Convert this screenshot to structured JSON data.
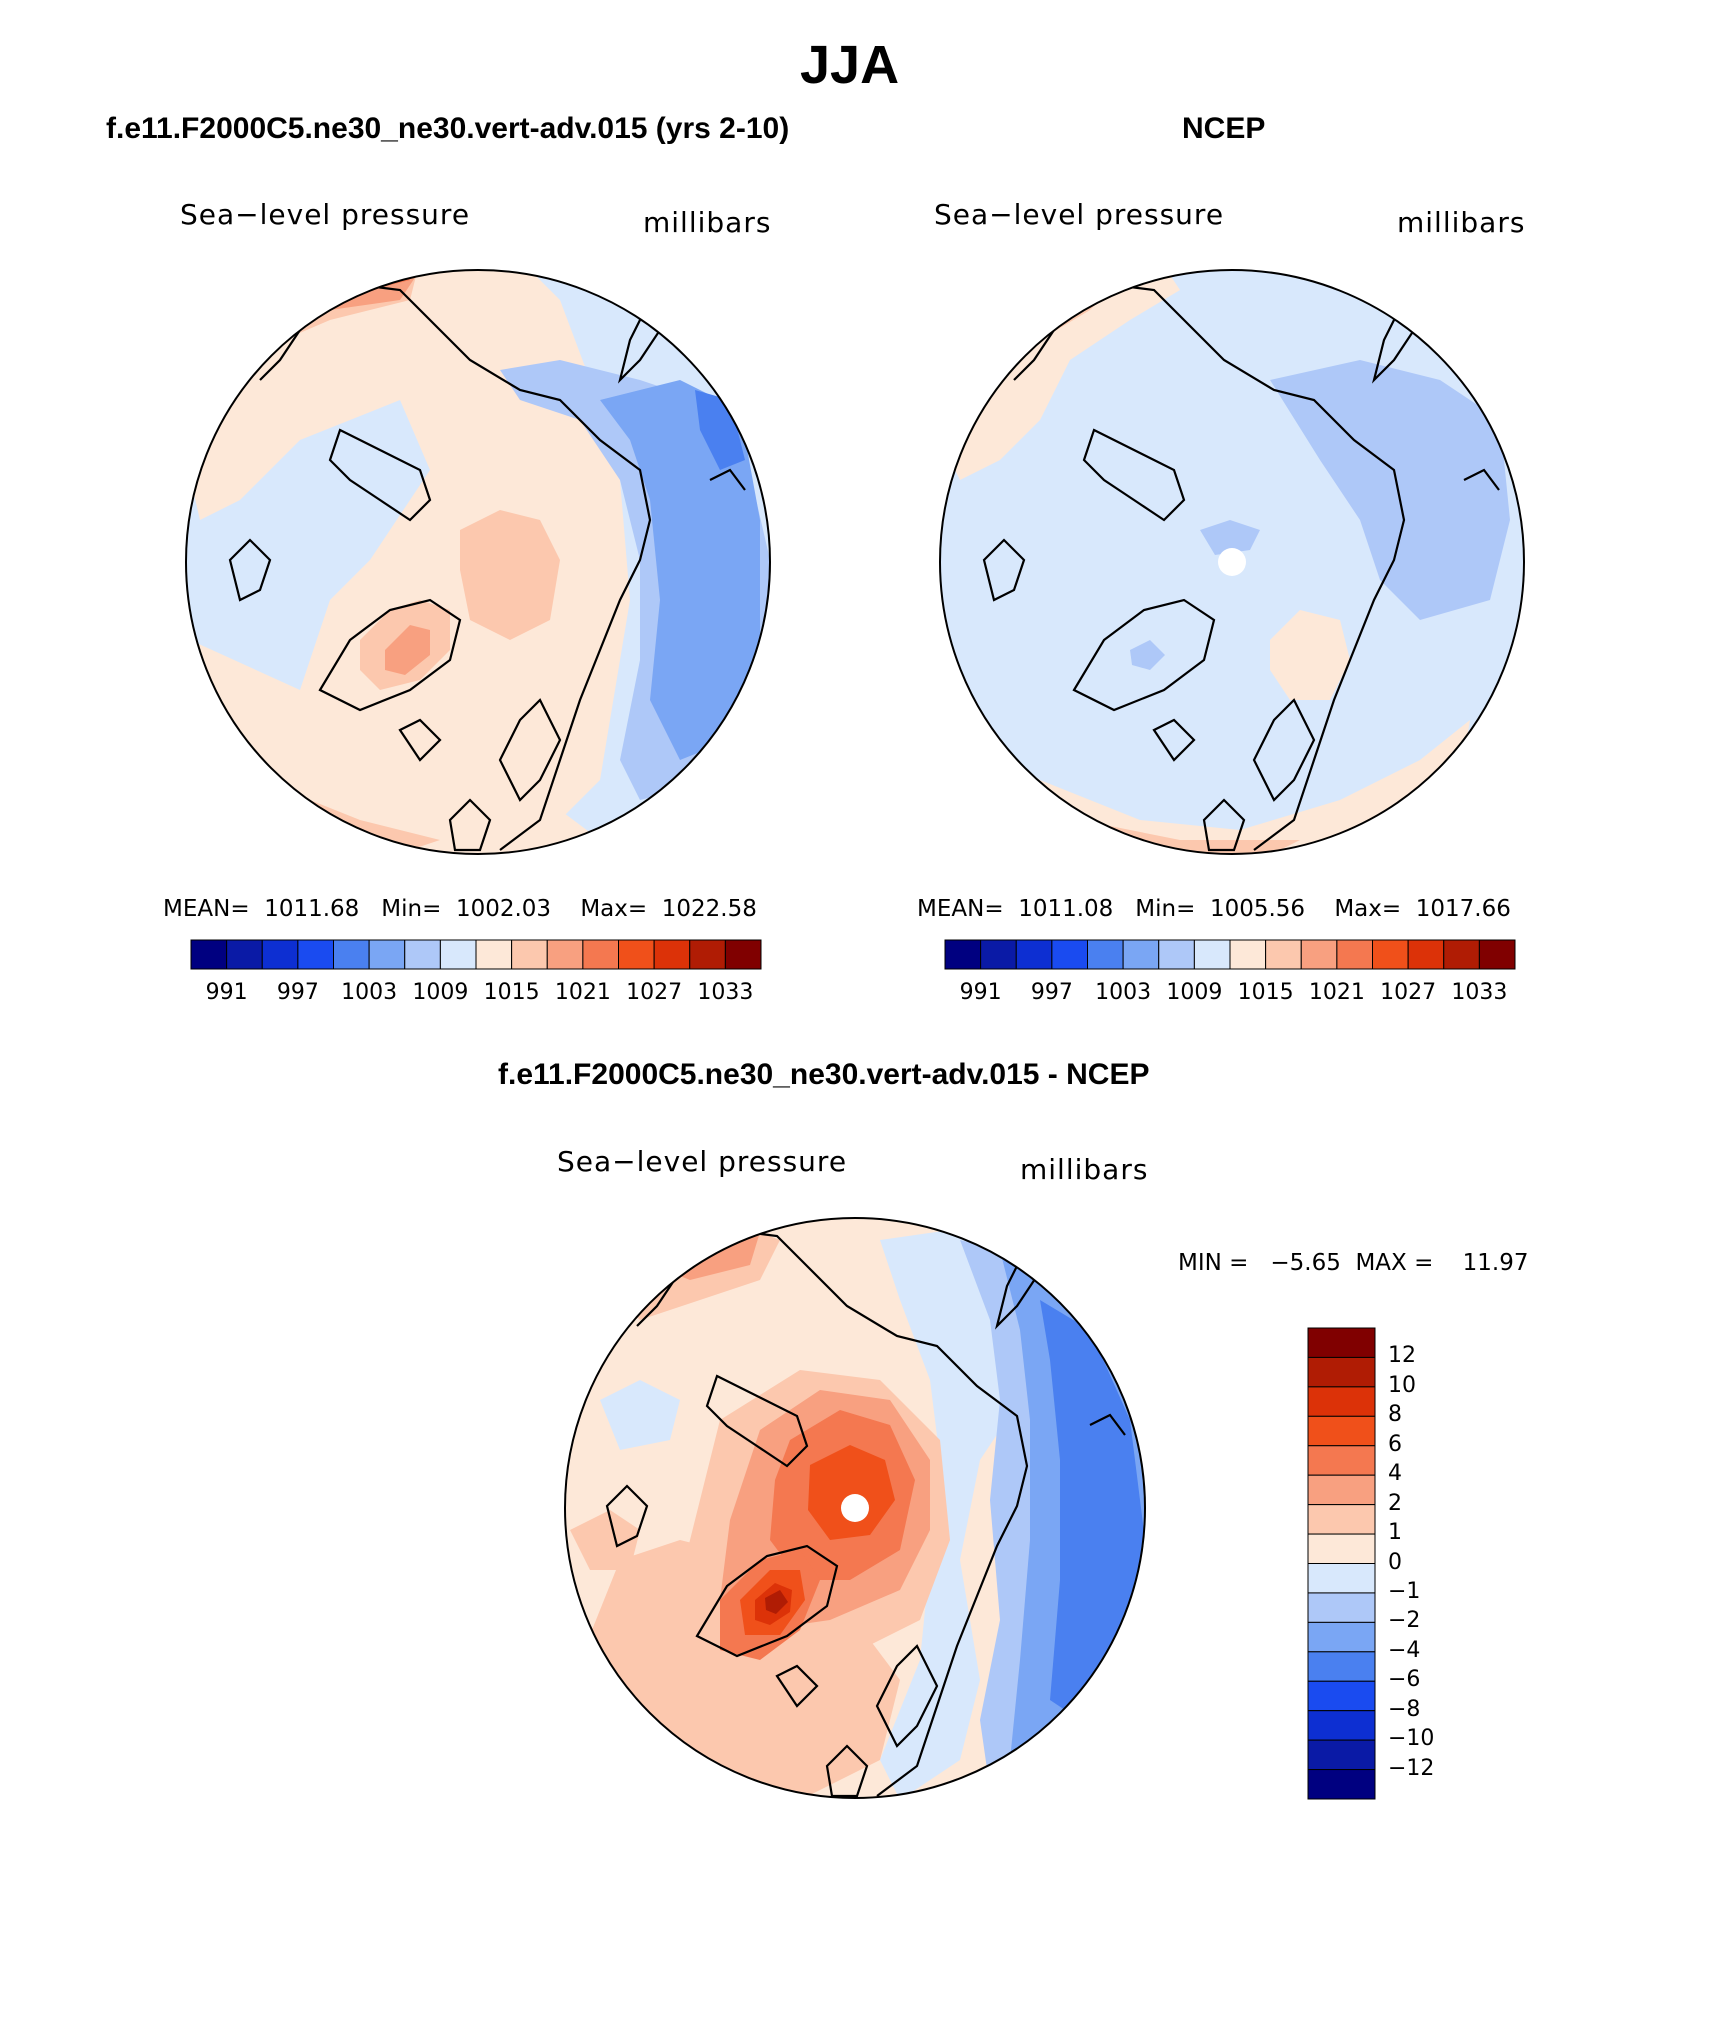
{
  "figure": {
    "title": "JJA"
  },
  "colors": {
    "hbar": [
      "#000080",
      "#0a1aa6",
      "#0d2fd2",
      "#1a4bf0",
      "#4a80f0",
      "#7aa6f4",
      "#aec8f8",
      "#d8e8fc",
      "#fde8d8",
      "#fcc8ae",
      "#f8a080",
      "#f47850",
      "#f0501a",
      "#dc3208",
      "#b01c04",
      "#800000"
    ],
    "vbar": [
      "#000080",
      "#0a1aa6",
      "#0d2fd2",
      "#1a4bf0",
      "#4a80f0",
      "#7aa6f4",
      "#aec8f8",
      "#d8e8fc",
      "#fde8d8",
      "#fcc8ae",
      "#f8a080",
      "#f47850",
      "#f0501a",
      "#dc3208",
      "#b01c04",
      "#800000"
    ]
  },
  "panels": [
    {
      "title": "f.e11.F2000C5.ne30_ne30.vert-adv.015 (yrs 2-10)",
      "left_label": "Sea−level pressure",
      "right_label": "millibars",
      "stats": "MEAN=  1011.68   Min=  1002.03    Max=  1022.58",
      "ticks": [
        "991",
        "997",
        "1003",
        "1009",
        "1015",
        "1021",
        "1027",
        "1033"
      ]
    },
    {
      "title": "NCEP",
      "left_label": "Sea−level pressure",
      "right_label": "millibars",
      "stats": "MEAN=  1011.08   Min=  1005.56    Max=  1017.66",
      "ticks": [
        "991",
        "997",
        "1003",
        "1009",
        "1015",
        "1021",
        "1027",
        "1033"
      ]
    },
    {
      "title": "f.e11.F2000C5.ne30_ne30.vert-adv.015 - NCEP",
      "left_label": "Sea−level pressure",
      "right_label": "millibars",
      "minmax": "MIN =   −5.65  MAX =    11.97",
      "ticks": [
        "12",
        "10",
        "8",
        "6",
        "4",
        "2",
        "1",
        "0",
        "−1",
        "−2",
        "−4",
        "−6",
        "−8",
        "−10",
        "−12"
      ]
    }
  ]
}
